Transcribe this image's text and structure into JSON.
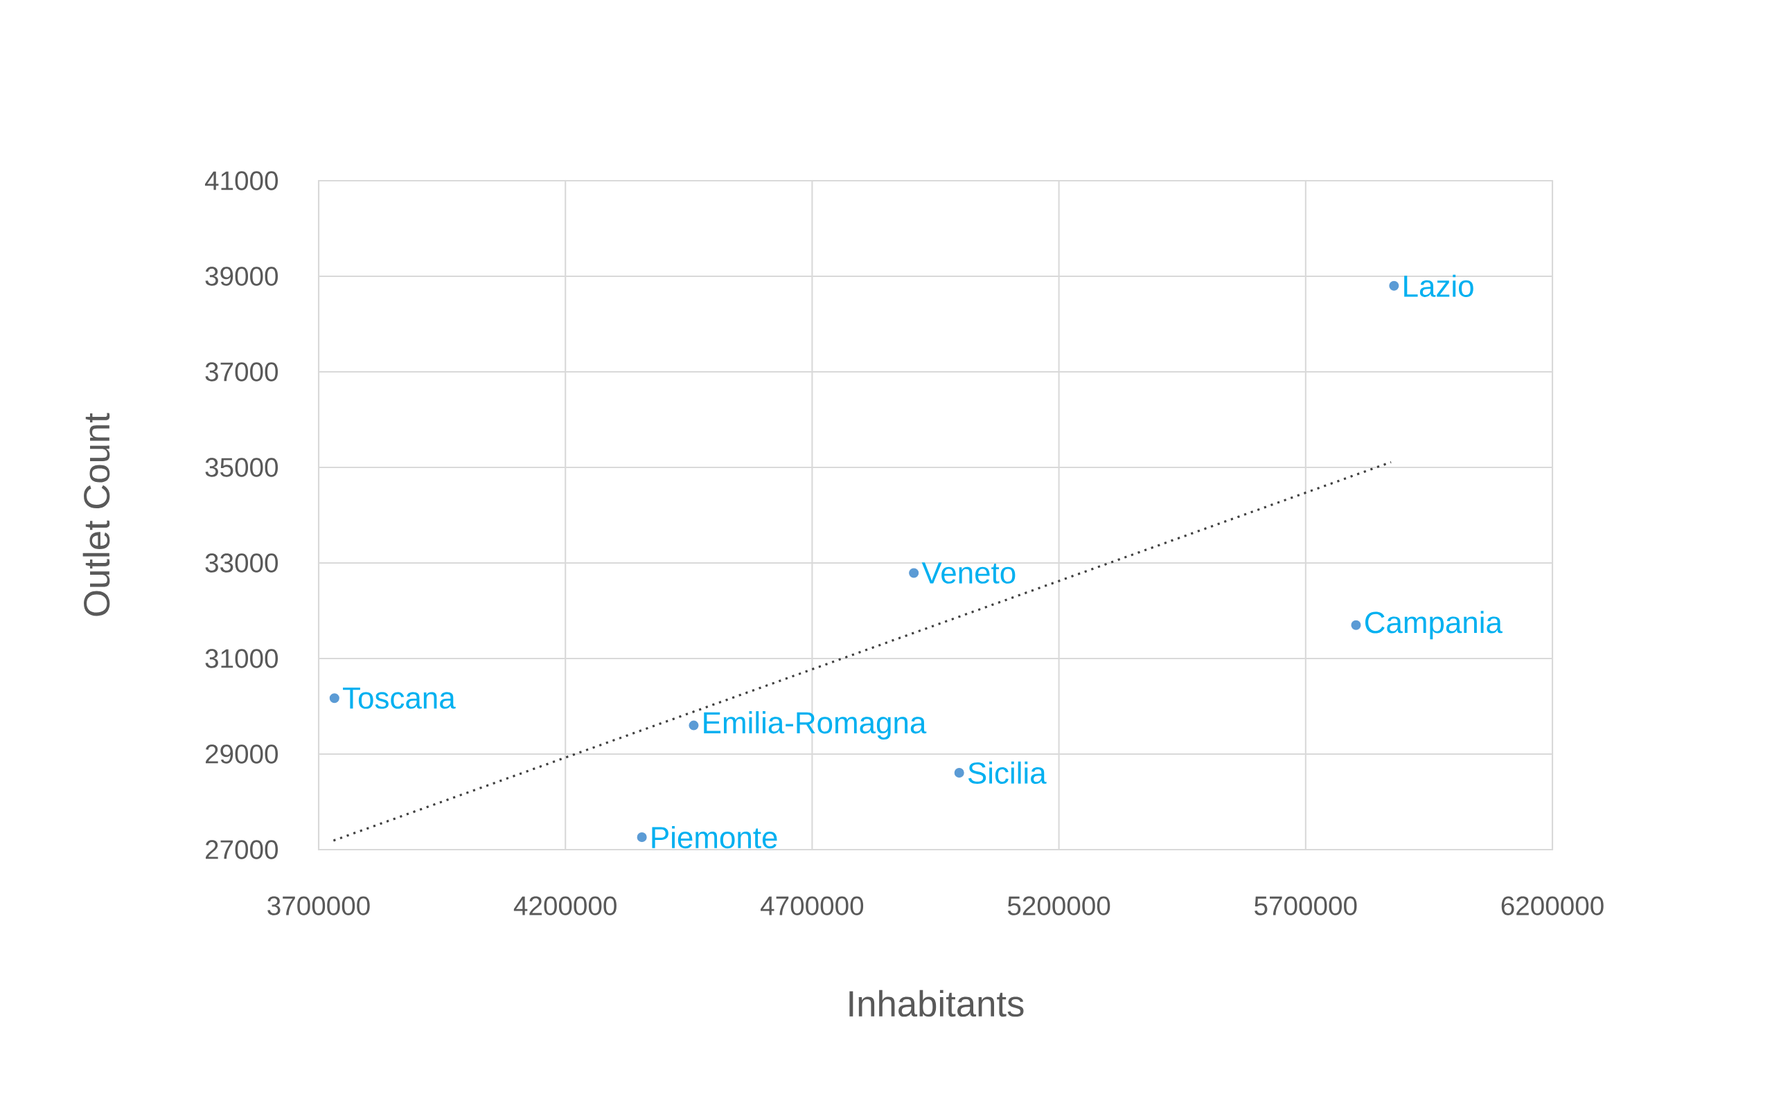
{
  "chart_data": {
    "type": "scatter",
    "xlabel": "Inhabitants",
    "ylabel": "Outlet Count",
    "xlim": [
      3700000,
      6200000
    ],
    "ylim": [
      27000,
      41000
    ],
    "xticks": [
      3700000,
      4200000,
      4700000,
      5200000,
      5700000,
      6200000
    ],
    "yticks": [
      27000,
      29000,
      31000,
      33000,
      35000,
      37000,
      39000,
      41000
    ],
    "grid": true,
    "series": [
      {
        "type": "scatter",
        "marker": "circle",
        "color": "#5b9bd5",
        "x": [
          3732000,
          4460000,
          4355000,
          4906000,
          4998000,
          5802000,
          5879000
        ],
        "values": [
          30170,
          29600,
          27260,
          32790,
          28610,
          31700,
          38800
        ]
      },
      {
        "type": "line",
        "color": "#404040",
        "line_style": "dotted",
        "marker": "none",
        "x": [
          3730000,
          5873000
        ],
        "values": [
          27190,
          35110
        ]
      }
    ],
    "annotations": [
      {
        "text": "Toscana",
        "x": 3732000,
        "y": 30170
      },
      {
        "text": "Emilia-Romagna",
        "x": 4460000,
        "y": 29600
      },
      {
        "text": "Piemonte",
        "x": 4355000,
        "y": 27260
      },
      {
        "text": "Veneto",
        "x": 4906000,
        "y": 32790
      },
      {
        "text": "Sicilia",
        "x": 4998000,
        "y": 28610
      },
      {
        "text": "Campania",
        "x": 5802000,
        "y": 31700
      },
      {
        "text": "Lazio",
        "x": 5879000,
        "y": 38800
      }
    ]
  }
}
